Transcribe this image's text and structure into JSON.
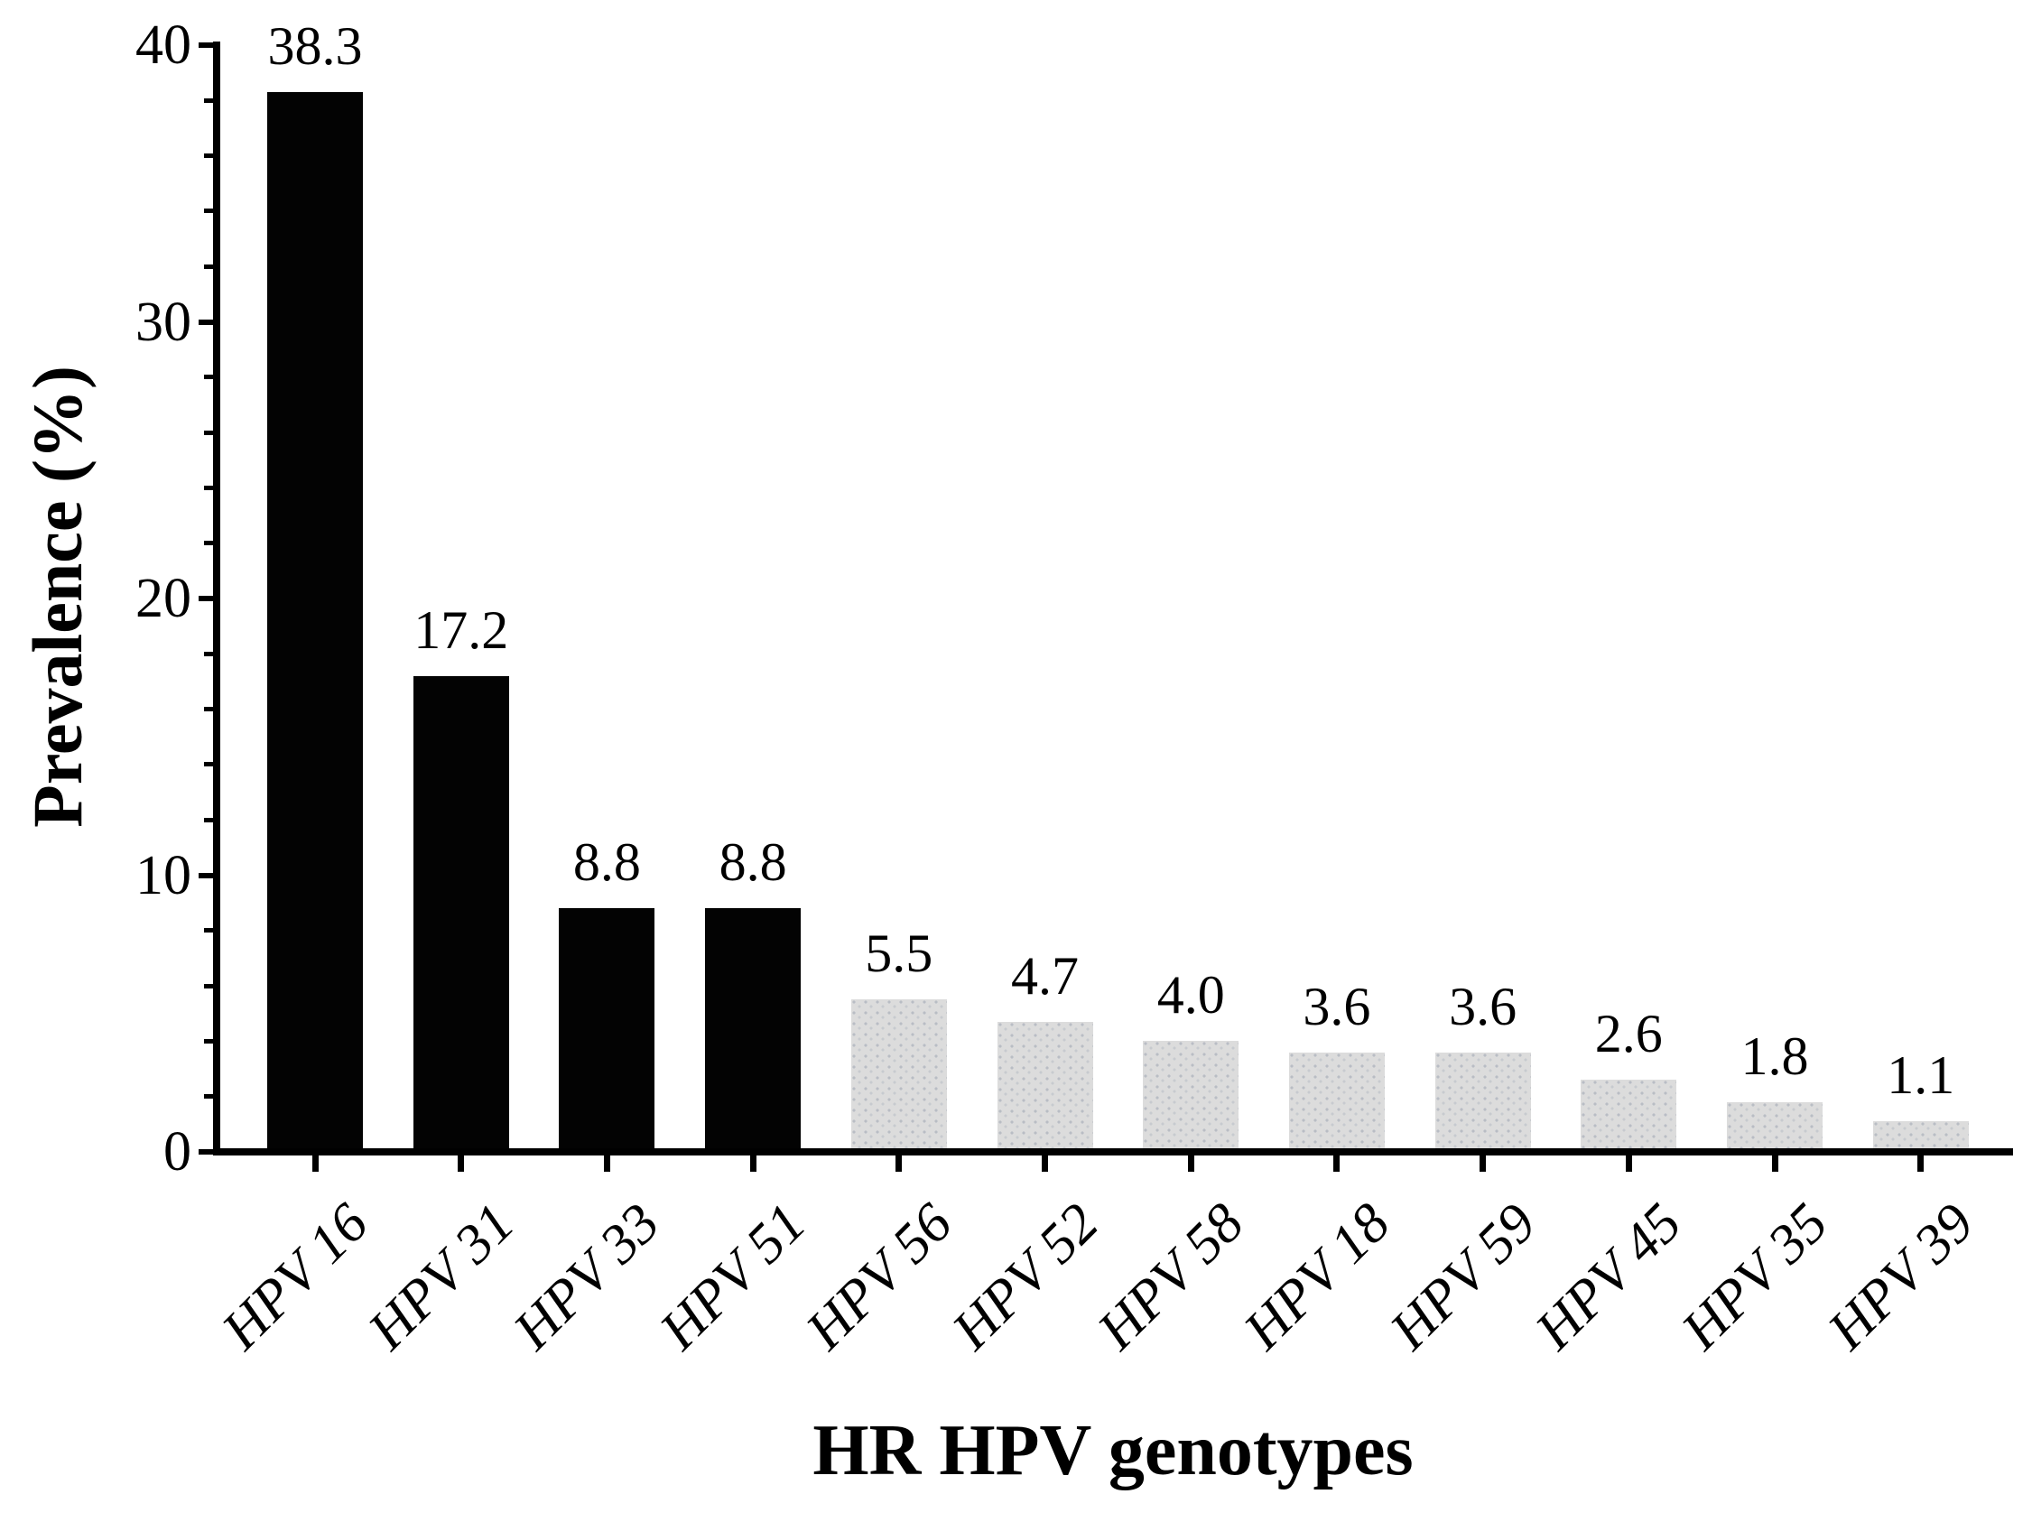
{
  "figure": {
    "background": "#ffffff"
  },
  "chart_data": {
    "type": "bar",
    "title": "",
    "xlabel": "HR HPV genotypes",
    "ylabel": "Prevalence (%)",
    "categories": [
      "HPV 16",
      "HPV 31",
      "HPV 33",
      "HPV 51",
      "HPV 56",
      "HPV 52",
      "HPV 58",
      "HPV 18",
      "HPV 59",
      "HPV 45",
      "HPV 35",
      "HPV 39"
    ],
    "values": [
      38.3,
      17.2,
      8.8,
      8.8,
      5.5,
      4.7,
      4.0,
      3.6,
      3.6,
      2.6,
      1.8,
      1.1
    ],
    "value_labels": [
      "38.3",
      "17.2",
      "8.8",
      "8.8",
      "5.5",
      "4.7",
      "4.0",
      "3.6",
      "3.6",
      "2.6",
      "1.8",
      "1.1"
    ],
    "bar_styles": [
      "black",
      "black",
      "black",
      "black",
      "gray",
      "gray",
      "gray",
      "gray",
      "gray",
      "gray",
      "gray",
      "gray"
    ],
    "ylim": [
      0,
      40
    ],
    "yticks": [
      0,
      10,
      20,
      30,
      40
    ],
    "ytick_labels": [
      "0",
      "10",
      "20",
      "30",
      "40"
    ],
    "minor_tick_step": 2,
    "grid": false,
    "legend": null,
    "x_label_rotation_deg": -45,
    "colors": {
      "black_bar": "#030303",
      "gray_bar": "#dcdcdc",
      "gray_bar_dots": "#bdbdbd",
      "axis": "#000000",
      "text": "#000000"
    }
  }
}
